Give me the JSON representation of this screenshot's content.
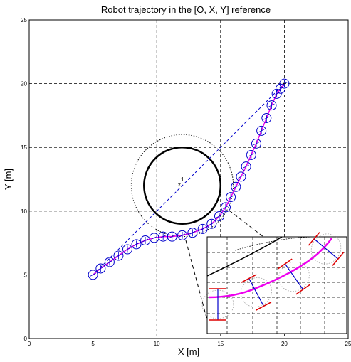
{
  "chart_data": {
    "type": "line",
    "title": "Robot trajectory in the [O, X, Y] reference",
    "xlabel": "X [m]",
    "ylabel": "Y [m]",
    "xlim": [
      0,
      25
    ],
    "ylim": [
      0,
      25
    ],
    "xticks": [
      "0",
      "5",
      "10",
      "15",
      "20",
      "25"
    ],
    "yticks": [
      "0",
      "5",
      "10",
      "15",
      "20",
      "25"
    ],
    "grid": true,
    "obstacle": {
      "label": "1",
      "center": [
        12,
        12
      ],
      "radius": 3,
      "safety_radius": 4
    },
    "series": [
      {
        "style": "dashed-blue",
        "x": [
          5,
          20
        ],
        "y": [
          5,
          20
        ]
      },
      {
        "style": "magenta-with-robot-markers",
        "x": [
          5,
          5.6,
          6.3,
          7.0,
          7.7,
          8.4,
          9.1,
          9.8,
          10.5,
          11.2,
          12.0,
          12.8,
          13.6,
          14.3,
          14.9,
          15.4,
          15.8,
          16.2,
          16.6,
          17.0,
          17.4,
          17.8,
          18.2,
          18.6,
          19.0,
          19.4,
          19.7,
          20
        ],
        "y": [
          5,
          5.5,
          6.0,
          6.5,
          7.0,
          7.4,
          7.7,
          7.9,
          8.0,
          8.0,
          8.1,
          8.3,
          8.6,
          9.0,
          9.6,
          10.3,
          11.1,
          11.9,
          12.7,
          13.5,
          14.4,
          15.3,
          16.3,
          17.3,
          18.3,
          19.2,
          19.6,
          20
        ]
      }
    ],
    "colors": {
      "reference": "#0000cc",
      "trajectory": "#ee00ee",
      "obstacle": "#000000",
      "wheel": "#dd0000"
    }
  }
}
